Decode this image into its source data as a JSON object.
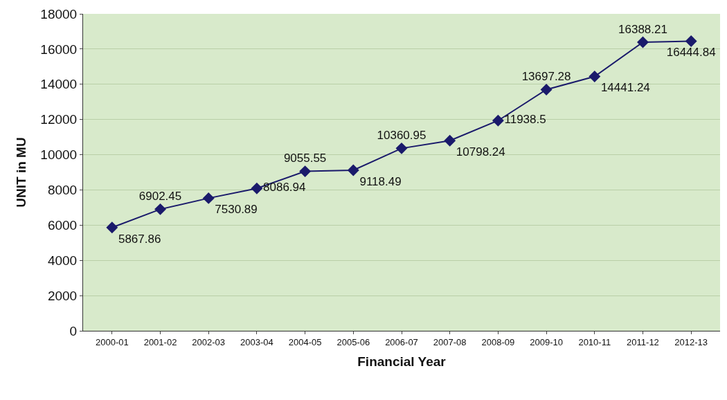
{
  "chart_data": {
    "type": "line",
    "xlabel": "Financial Year",
    "ylabel": "UNIT in MU",
    "categories": [
      "2000-01",
      "2001-02",
      "2002-03",
      "2003-04",
      "2004-05",
      "2005-06",
      "2006-07",
      "2007-08",
      "2008-09",
      "2009-10",
      "2010-11",
      "2011-12",
      "2012-13"
    ],
    "series": [
      {
        "color": "#1a1a6b",
        "values": [
          5867.86,
          6902.45,
          7530.89,
          8086.94,
          9055.55,
          9118.49,
          10360.95,
          10798.24,
          11938.5,
          13697.28,
          14441.24,
          16388.21,
          16444.84
        ]
      }
    ],
    "ylim": [
      0,
      18000
    ],
    "yticks": [
      0,
      2000,
      4000,
      6000,
      8000,
      10000,
      12000,
      14000,
      16000,
      18000
    ],
    "grid": "y",
    "marker": "diamond",
    "line_style": "solid",
    "data_labels": true,
    "legend": false
  }
}
